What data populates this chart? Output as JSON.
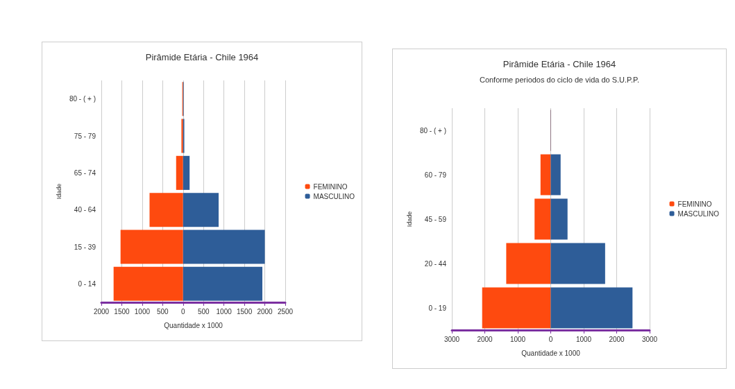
{
  "chart_data": [
    {
      "type": "bar",
      "orientation": "horizontal",
      "stacked": true,
      "title": "Pirâmide Etária - Chile 1964",
      "xlabel": "Quantidade x 1000",
      "ylabel": "Idade",
      "categories": [
        "80 - ( + )",
        "75 - 79",
        "65 - 74",
        "40 - 64",
        "15 - 39",
        "0 - 14"
      ],
      "series": [
        {
          "name": "FEMININO",
          "color": "#fe4a0f",
          "values": [
            -20,
            -40,
            -170,
            -820,
            -1530,
            -1700
          ]
        },
        {
          "name": "MASCULINO",
          "color": "#2e5d98",
          "values": [
            15,
            30,
            160,
            870,
            2000,
            1940
          ]
        }
      ],
      "xlim": [
        -2000,
        2500
      ],
      "xticks": [
        {
          "value": -2000,
          "label": "2000"
        },
        {
          "value": -1500,
          "label": "1500"
        },
        {
          "value": -1000,
          "label": "1000"
        },
        {
          "value": -500,
          "label": "500"
        },
        0,
        500,
        1000,
        1500,
        2000,
        2500
      ],
      "grid": "x",
      "legend": "right"
    },
    {
      "type": "bar",
      "orientation": "horizontal",
      "stacked": true,
      "title": "Pirâmide Etária - Chile 1964",
      "subtitle": "Conforme periodos do ciclo de vida do S.U.P.P.",
      "xlabel": "Quantidade x 1000",
      "ylabel": "Idade",
      "categories": [
        "80 - ( + )",
        "60 - 79",
        "45 - 59",
        "20 - 44",
        "0 - 19"
      ],
      "series": [
        {
          "name": "FEMININO",
          "color": "#fe4a0f",
          "values": [
            -10,
            -310,
            -490,
            -1350,
            -2080
          ]
        },
        {
          "name": "MASCULINO",
          "color": "#2e5d98",
          "values": [
            10,
            300,
            510,
            1650,
            2480
          ]
        }
      ],
      "xlim": [
        -3000,
        3000
      ],
      "xticks": [
        {
          "value": -3000,
          "label": "3000"
        },
        {
          "value": -2000,
          "label": "2000"
        },
        {
          "value": -1000,
          "label": "1000"
        },
        0,
        1000,
        2000,
        3000
      ],
      "grid": "x",
      "legend": "right"
    }
  ]
}
